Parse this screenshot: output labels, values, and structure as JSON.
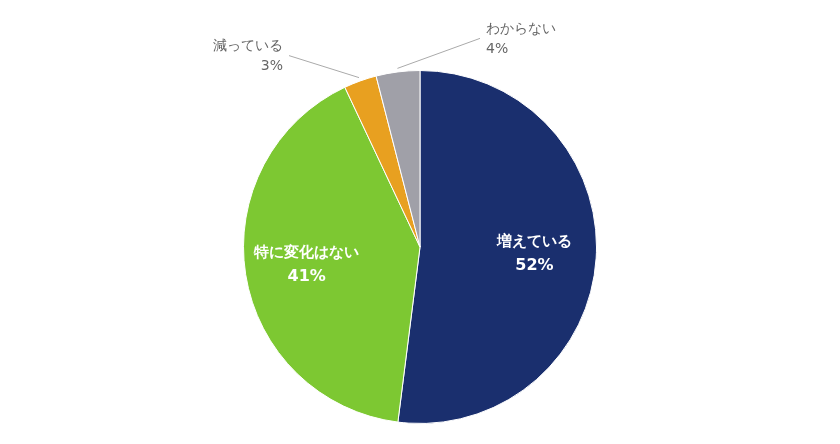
{
  "chart_data": {
    "type": "pie",
    "categories": [
      "増えている",
      "特に変化はない",
      "減っている",
      "わからない"
    ],
    "values": [
      52,
      41,
      3,
      4
    ],
    "value_labels": [
      "52%",
      "41%",
      "3%",
      "4%"
    ],
    "colors": [
      "#1a2f6e",
      "#7dc832",
      "#e8a020",
      "#a0a0a8"
    ],
    "data_labels": true
  }
}
